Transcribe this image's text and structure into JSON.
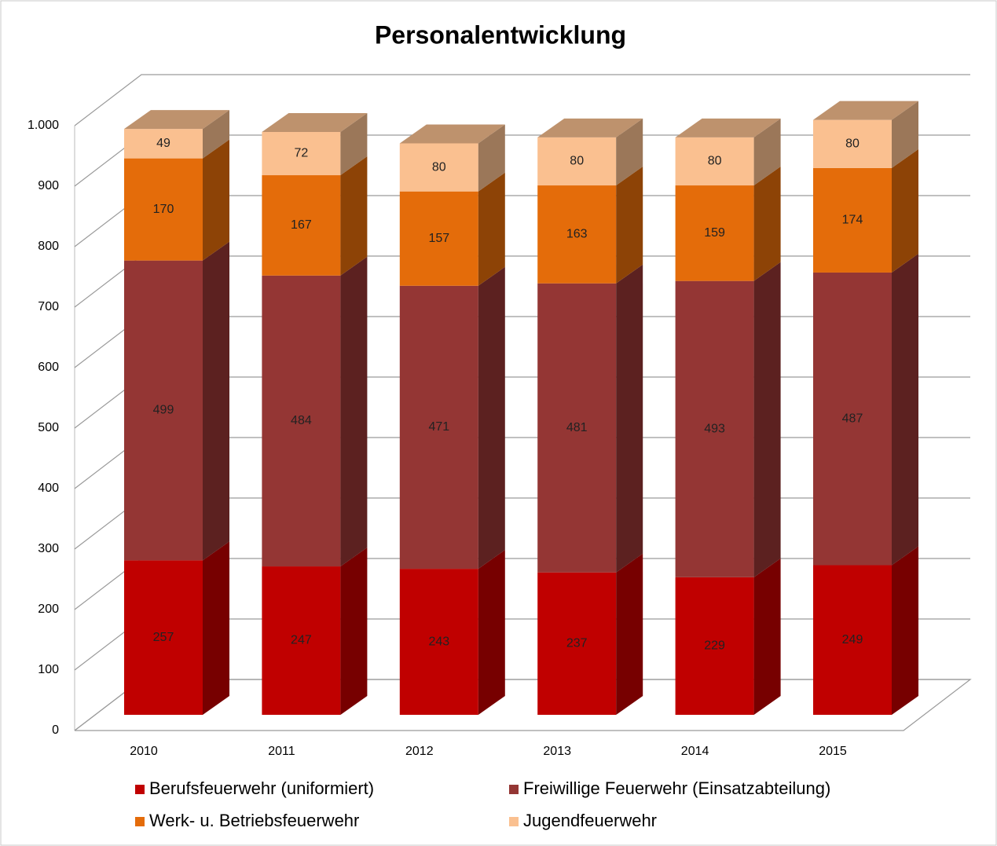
{
  "chart_data": {
    "type": "bar3d_stacked",
    "title": "Personalentwicklung",
    "categories": [
      "2010",
      "2011",
      "2012",
      "2013",
      "2014",
      "2015"
    ],
    "series": [
      {
        "name": "Berufsfeuerwehr (uniformiert)",
        "color": "#c00000",
        "values": [
          257,
          247,
          243,
          237,
          229,
          249
        ]
      },
      {
        "name": "Freiwillige Feuerwehr (Einsatzabteilung)",
        "color": "#943634",
        "values": [
          499,
          484,
          471,
          481,
          493,
          487
        ]
      },
      {
        "name": "Werk- u. Betriebsfeuerwehr",
        "color": "#e46c0a",
        "values": [
          170,
          167,
          157,
          163,
          159,
          174
        ]
      },
      {
        "name": "Jugendfeuerwehr",
        "color": "#fac090",
        "values": [
          49,
          72,
          80,
          80,
          80,
          80
        ]
      }
    ],
    "ylim": [
      0,
      1000
    ],
    "yticks": [
      0,
      100,
      200,
      300,
      400,
      500,
      600,
      700,
      800,
      900,
      {
        "value": 1000,
        "label": "1.000"
      }
    ],
    "grid": true,
    "legend": "bottom"
  }
}
